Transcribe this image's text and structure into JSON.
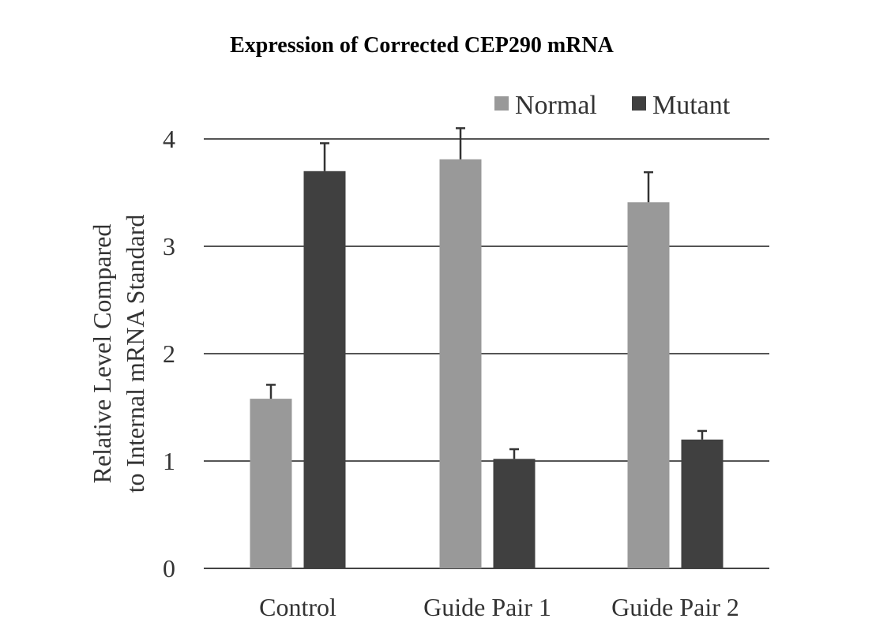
{
  "chart_data": {
    "type": "bar",
    "title": "Expression of Corrected CEP290 mRNA",
    "ylabel_lines": [
      "Relative Level Compared",
      "to Internal mRNA Standard"
    ],
    "xlabel": "",
    "categories": [
      "Control",
      "Guide Pair 1",
      "Guide Pair 2"
    ],
    "series": [
      {
        "name": "Normal",
        "color": "#999999",
        "values": [
          1.58,
          3.81,
          3.41
        ],
        "errors": [
          0.13,
          0.29,
          0.28
        ]
      },
      {
        "name": "Mutant",
        "color": "#404040",
        "values": [
          3.7,
          1.02,
          1.2
        ],
        "errors": [
          0.26,
          0.09,
          0.08
        ]
      }
    ],
    "ylim": [
      0,
      4
    ],
    "yticks": [
      0,
      1,
      2,
      3,
      4
    ],
    "grid": true,
    "legend_position": "top-right"
  }
}
